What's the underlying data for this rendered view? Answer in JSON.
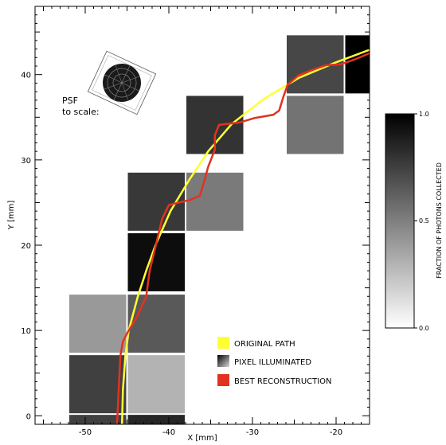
{
  "chart_data": {
    "type": "heatmap",
    "xlabel": "X [mm]",
    "ylabel": "Y [mm]",
    "xlim": [
      -56,
      -16
    ],
    "ylim": [
      -1,
      48
    ],
    "x_ticks": [
      -50,
      -40,
      -30,
      -20
    ],
    "y_ticks": [
      0,
      10,
      20,
      30,
      40
    ],
    "grid": false,
    "pixel_size_mm": 7,
    "pixels": [
      {
        "x": -48.5,
        "y": -2.0,
        "value": 0.75
      },
      {
        "x": -41.5,
        "y": -2.0,
        "value": 0.85
      },
      {
        "x": -48.5,
        "y": 3.7,
        "value": 0.75
      },
      {
        "x": -41.5,
        "y": 3.7,
        "value": 0.3
      },
      {
        "x": -48.5,
        "y": 10.8,
        "value": 0.4
      },
      {
        "x": -41.5,
        "y": 10.8,
        "value": 0.65
      },
      {
        "x": -41.5,
        "y": 18.0,
        "value": 0.95
      },
      {
        "x": -41.5,
        "y": 25.1,
        "value": 0.78
      },
      {
        "x": -34.5,
        "y": 25.1,
        "value": 0.52
      },
      {
        "x": -34.5,
        "y": 34.1,
        "value": 0.8
      },
      {
        "x": -22.5,
        "y": 34.1,
        "value": 0.55
      },
      {
        "x": -22.5,
        "y": 41.2,
        "value": 0.72
      },
      {
        "x": -15.5,
        "y": 41.2,
        "value": 1.0
      }
    ],
    "series": [
      {
        "name": "ORIGINAL PATH",
        "color": "#ffff33",
        "points": [
          [
            -45.6,
            -1
          ],
          [
            -45.5,
            3
          ],
          [
            -45.2,
            7
          ],
          [
            -44.8,
            10
          ],
          [
            -43.7,
            14
          ],
          [
            -42.7,
            17
          ],
          [
            -41.6,
            20
          ],
          [
            -39.8,
            24
          ],
          [
            -37.6,
            27.6
          ],
          [
            -35.3,
            31
          ],
          [
            -32.5,
            34.2
          ],
          [
            -28.7,
            37.1
          ],
          [
            -24.5,
            39.6
          ],
          [
            -20.1,
            41.4
          ],
          [
            -16,
            42.9
          ]
        ]
      },
      {
        "name": "BEST RECONSTRUCTION",
        "color": "#e2321f",
        "points": [
          [
            -46.2,
            -1
          ],
          [
            -46.0,
            3
          ],
          [
            -45.8,
            7
          ],
          [
            -45.5,
            8.7
          ],
          [
            -44.8,
            10
          ],
          [
            -43.8,
            11.6
          ],
          [
            -42.7,
            14
          ],
          [
            -42.3,
            17
          ],
          [
            -41.7,
            19.4
          ],
          [
            -40.8,
            23.1
          ],
          [
            -40.0,
            24.7
          ],
          [
            -38.8,
            25.0
          ],
          [
            -37.5,
            25.3
          ],
          [
            -36.3,
            25.8
          ],
          [
            -35.8,
            27.4
          ],
          [
            -35.3,
            29.2
          ],
          [
            -34.5,
            31.2
          ],
          [
            -34.5,
            32.9
          ],
          [
            -34.0,
            34.1
          ],
          [
            -31.5,
            34.4
          ],
          [
            -29.8,
            34.9
          ],
          [
            -27.5,
            35.3
          ],
          [
            -26.8,
            35.8
          ],
          [
            -26.3,
            37.4
          ],
          [
            -25.8,
            38.8
          ],
          [
            -24.5,
            39.9
          ],
          [
            -23.0,
            40.5
          ],
          [
            -21.2,
            41.1
          ],
          [
            -19.5,
            41.2
          ],
          [
            -17.7,
            41.8
          ],
          [
            -16,
            42.5
          ]
        ]
      }
    ],
    "legend": {
      "position": "bottom-right",
      "entries": [
        {
          "label": "ORIGINAL PATH",
          "swatch": "#ffff33"
        },
        {
          "label": "PIXEL ILLUMINATED",
          "swatch": "gradient"
        },
        {
          "label": "BEST RECONSTRUCTION",
          "swatch": "#e2321f"
        }
      ]
    },
    "colorbar": {
      "label": "FRACTION OF PHOTONS COLLECTED",
      "range": [
        0,
        1
      ],
      "ticks": [
        "0.0",
        "0.5",
        "1.0"
      ]
    },
    "annotation": {
      "line1": "PSF",
      "line2": "to scale:"
    }
  }
}
